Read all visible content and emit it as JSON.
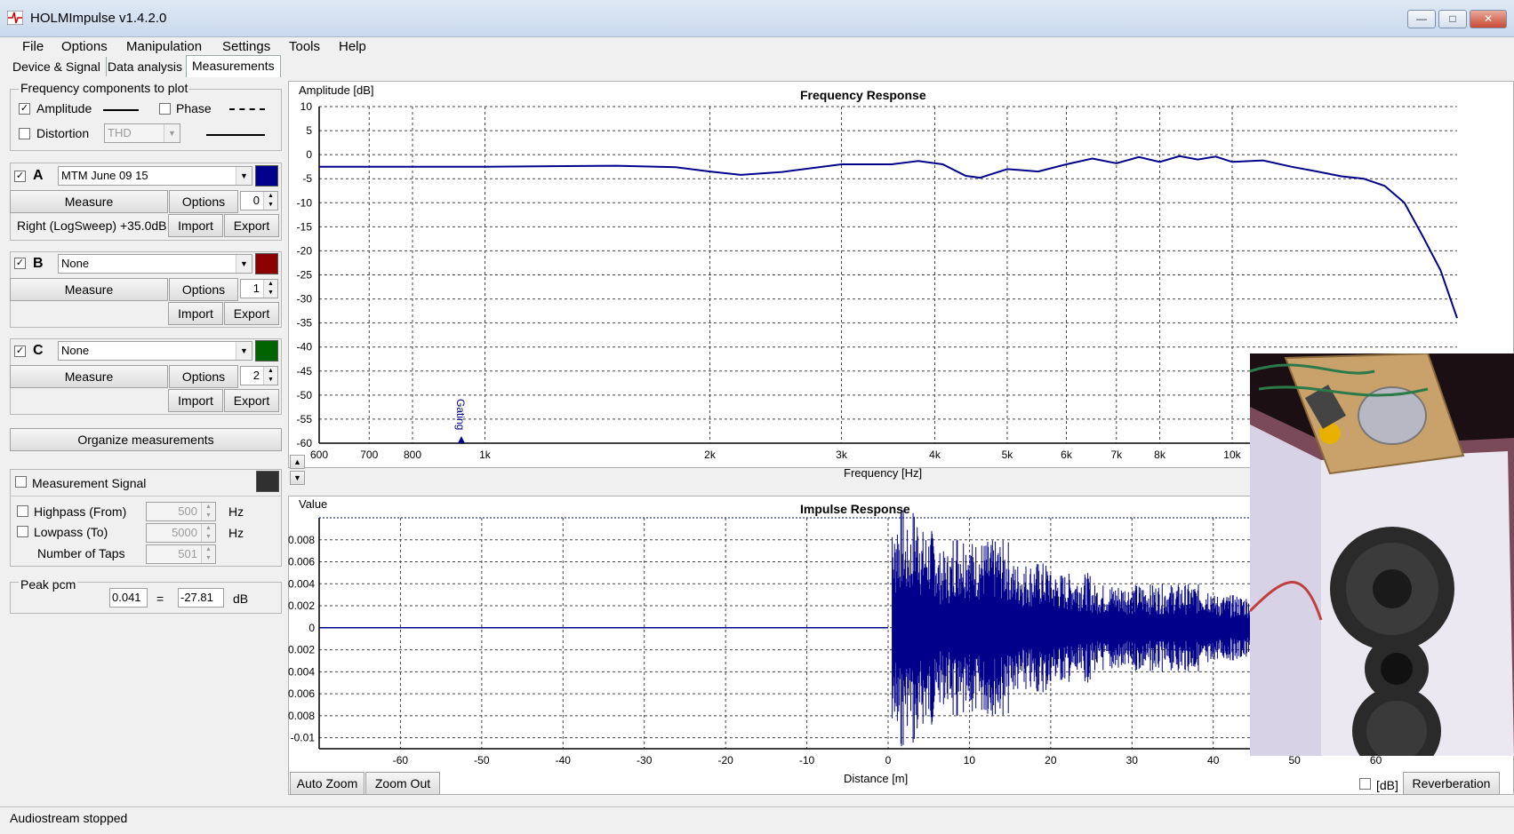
{
  "window": {
    "title": "HOLMImpulse  v1.4.2.0"
  },
  "menu": [
    "File",
    "Options",
    "Manipulation",
    "Settings",
    "Tools",
    "Help"
  ],
  "tabs": [
    "Device & Signal",
    "Data analysis",
    "Measurements"
  ],
  "freq_components": {
    "title": "Frequency components to plot",
    "amplitude_label": "Amplitude",
    "amplitude_checked": true,
    "phase_label": "Phase",
    "phase_checked": false,
    "distortion_label": "Distortion",
    "distortion_checked": false,
    "distortion_type": "THD"
  },
  "slots": [
    {
      "letter": "A",
      "checked": true,
      "selected": "MTM June 09 15",
      "color": "#00008b",
      "measure": "Measure",
      "options": "Options",
      "spin": "0",
      "info": "Right (LogSweep) +35.0dB",
      "import": "Import",
      "export": "Export"
    },
    {
      "letter": "B",
      "checked": true,
      "selected": "None",
      "color": "#8b0000",
      "measure": "Measure",
      "options": "Options",
      "spin": "1",
      "info": "",
      "import": "Import",
      "export": "Export"
    },
    {
      "letter": "C",
      "checked": true,
      "selected": "None",
      "color": "#006400",
      "measure": "Measure",
      "options": "Options",
      "spin": "2",
      "info": "",
      "import": "Import",
      "export": "Export"
    }
  ],
  "organize_button": "Organize measurements",
  "signal": {
    "title": "Measurement Signal",
    "checked": false,
    "color": "#303030",
    "highpass_label": "Highpass (From)",
    "highpass_value": "500",
    "highpass_unit": "Hz",
    "lowpass_label": "Lowpass (To)",
    "lowpass_value": "5000",
    "lowpass_unit": "Hz",
    "taps_label": "Number of Taps",
    "taps_value": "501"
  },
  "peak": {
    "title": "Peak pcm",
    "pcm": "0.041",
    "eq": "=",
    "db": "-27.81",
    "unit": "dB"
  },
  "freq_plot": {
    "title": "Frequency Response",
    "ylabel": "Amplitude [dB]",
    "xlabel": "Frequency [Hz]",
    "marker": "Gating",
    "yticks": [
      "10",
      "5",
      "0",
      "-5",
      "-10",
      "-15",
      "-20",
      "-25",
      "-30",
      "-35",
      "-40",
      "-45",
      "-50",
      "-55",
      "-60"
    ],
    "xticks": [
      "600",
      "700",
      "800",
      "1k",
      "2k",
      "3k",
      "4k",
      "5k",
      "6k",
      "7k",
      "8k",
      "10k"
    ]
  },
  "impulse_plot": {
    "title": "Impulse Response",
    "ylabel": "Value",
    "xlabel": "Distance [m]",
    "yticks": [
      "0.008",
      "0.006",
      "0.004",
      "0.002",
      "0",
      "-0.002",
      "-0.004",
      "-0.006",
      "-0.008",
      "-0.01"
    ],
    "xticks": [
      "-60",
      "-50",
      "-40",
      "-30",
      "-20",
      "-10",
      "0",
      "10",
      "20",
      "30",
      "40",
      "50",
      "60"
    ]
  },
  "chart_data": [
    {
      "type": "line",
      "title": "Frequency Response",
      "xlabel": "Frequency [Hz]",
      "ylabel": "Amplitude [dB]",
      "xscale": "log",
      "xlim": [
        600,
        20000
      ],
      "ylim": [
        -60,
        10
      ],
      "grid": true,
      "series": [
        {
          "name": "MTM June 09 15",
          "x": [
            600,
            700,
            900,
            1000,
            1500,
            1800,
            2000,
            2200,
            2500,
            3000,
            3500,
            3800,
            4100,
            4400,
            4600,
            5000,
            5500,
            6000,
            6500,
            7000,
            7500,
            8000,
            8500,
            9000,
            9500,
            10000,
            11000,
            12000,
            13000,
            14000,
            15000,
            16000,
            17000,
            18000,
            19000,
            20000
          ],
          "y": [
            -2.5,
            -2.5,
            -2.5,
            -2.5,
            -2.3,
            -2.6,
            -3.5,
            -4.2,
            -3.6,
            -2.0,
            -2.0,
            -1.3,
            -2.0,
            -4.4,
            -4.8,
            -3.0,
            -3.5,
            -2.0,
            -0.8,
            -1.8,
            -0.5,
            -1.5,
            -0.3,
            -1.0,
            -0.4,
            -1.5,
            -1.2,
            -2.5,
            -3.5,
            -4.5,
            -5.0,
            -6.5,
            -10,
            -17,
            -24,
            -34
          ]
        }
      ]
    },
    {
      "type": "line",
      "title": "Impulse Response",
      "xlabel": "Distance [m]",
      "ylabel": "Value",
      "xlim": [
        -70,
        70
      ],
      "ylim": [
        -0.011,
        0.01
      ],
      "grid": true,
      "series": [
        {
          "name": "MTM June 09 15",
          "x": [
            -70,
            -60,
            -5,
            0,
            0.5,
            1,
            2,
            3,
            4,
            5,
            6,
            8,
            10,
            15,
            20,
            25,
            30,
            40,
            45
          ],
          "y": [
            0.0,
            0.0,
            0.0,
            0.0,
            0.009,
            -0.011,
            0.009,
            -0.011,
            0.009,
            -0.009,
            0.007,
            -0.009,
            0.008,
            -0.006,
            0.005,
            -0.004,
            0.004,
            -0.003,
            0.003
          ]
        }
      ]
    }
  ],
  "bottom": {
    "auto_zoom": "Auto Zoom",
    "zoom_out": "Zoom Out",
    "db_label": "[dB]",
    "reverberation": "Reverberation"
  },
  "status": "Audiostream stopped"
}
